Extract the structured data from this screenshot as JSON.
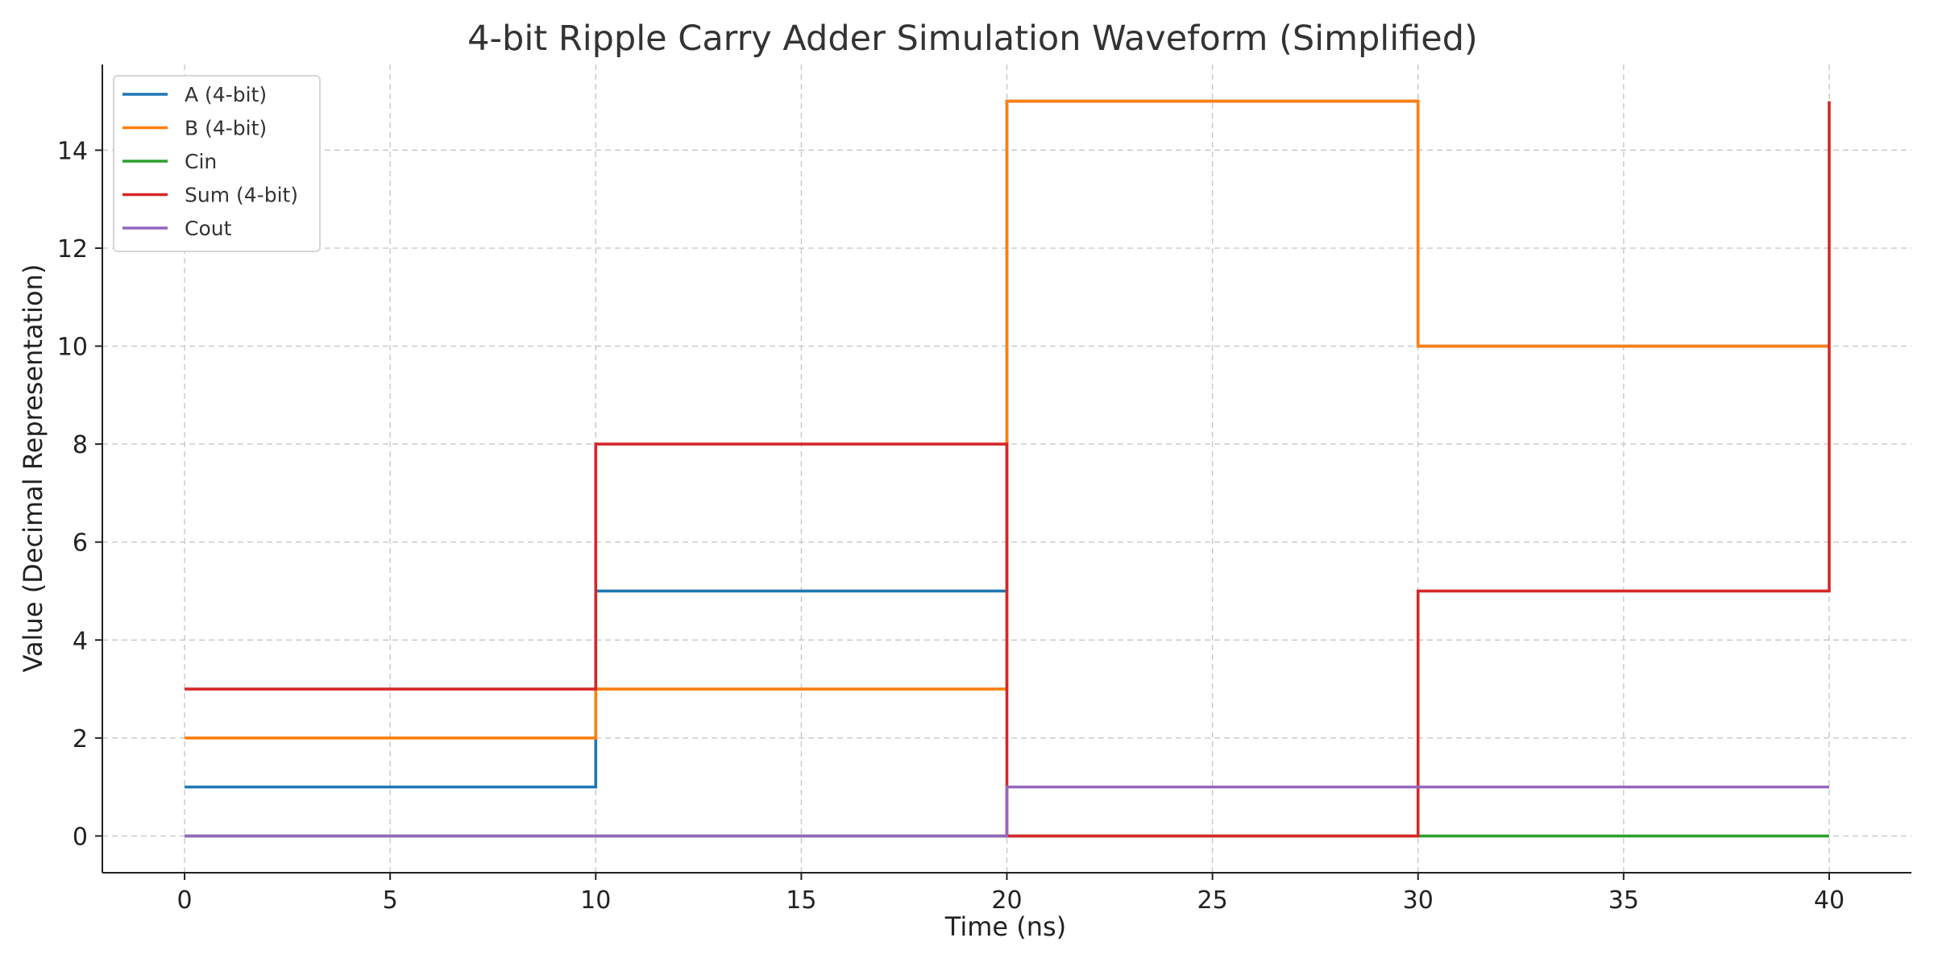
{
  "chart_data": {
    "type": "line",
    "step": "post",
    "title": "4-bit Ripple Carry Adder Simulation Waveform (Simplified)",
    "xlabel": "Time (ns)",
    "ylabel": "Value (Decimal Representation)",
    "xlim": [
      -2,
      42
    ],
    "ylim": [
      -0.75,
      15.75
    ],
    "xticks": [
      0,
      5,
      10,
      15,
      20,
      25,
      30,
      35,
      40
    ],
    "yticks": [
      0,
      2,
      4,
      6,
      8,
      10,
      12,
      14
    ],
    "grid": true,
    "legend_position": "top-left",
    "x": [
      0,
      10,
      20,
      30,
      40
    ],
    "series": [
      {
        "name": "A (4-bit)",
        "color": "#1f77b4",
        "values": [
          1,
          5,
          15,
          10,
          10
        ]
      },
      {
        "name": "B (4-bit)",
        "color": "#ff7f0e",
        "values": [
          2,
          3,
          15,
          10,
          10
        ]
      },
      {
        "name": "Cin",
        "color": "#2ca02c",
        "values": [
          0,
          0,
          0,
          0,
          0
        ]
      },
      {
        "name": "Sum (4-bit)",
        "color": "#d62728",
        "values": [
          3,
          8,
          0,
          5,
          15
        ]
      },
      {
        "name": "Cout",
        "color": "#9467bd",
        "values": [
          0,
          0,
          1,
          1,
          1
        ]
      }
    ]
  }
}
